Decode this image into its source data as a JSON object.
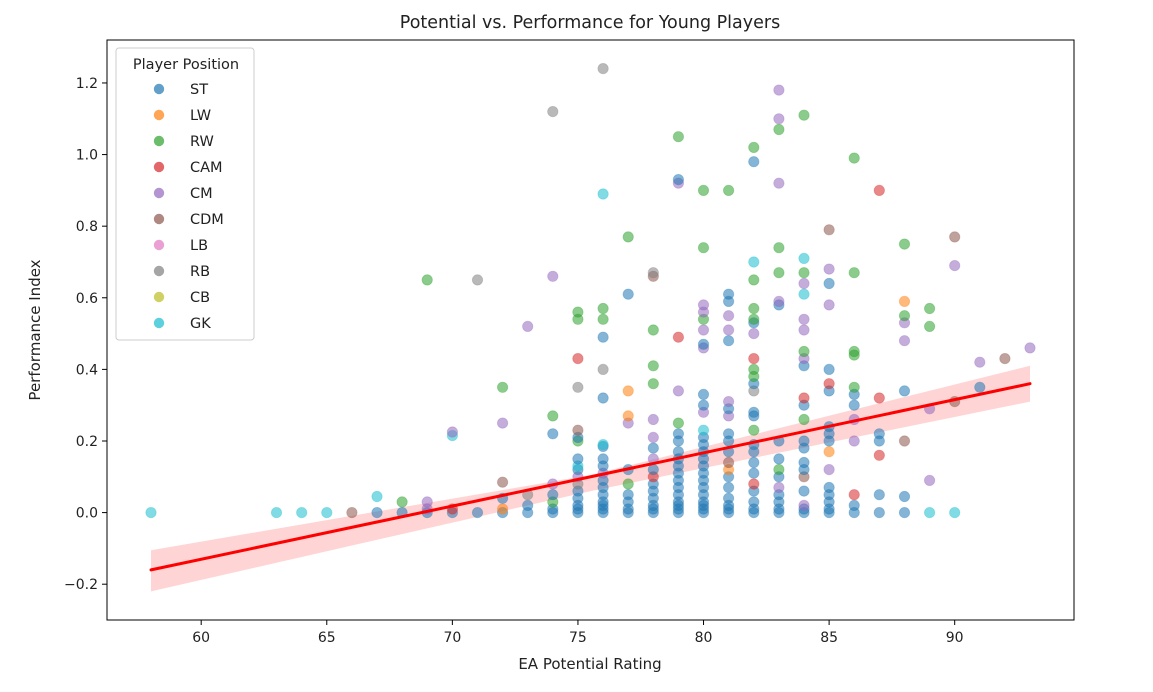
{
  "chart_data": {
    "type": "scatter",
    "title": "Potential vs. Performance for Young Players",
    "xlabel": "EA Potential Rating",
    "ylabel": "Performance Index",
    "xlim": [
      56.25,
      94.75
    ],
    "ylim": [
      -0.3,
      1.32
    ],
    "xticks": [
      60,
      65,
      70,
      75,
      80,
      85,
      90
    ],
    "xtick_labels": [
      "60",
      "65",
      "70",
      "75",
      "80",
      "85",
      "90"
    ],
    "yticks": [
      -0.2,
      0.0,
      0.2,
      0.4,
      0.6,
      0.8,
      1.0,
      1.2
    ],
    "ytick_labels": [
      "−0.2",
      "0.0",
      "0.2",
      "0.4",
      "0.6",
      "0.8",
      "1.0",
      "1.2"
    ],
    "grid": false,
    "legend": {
      "title": "Player Position",
      "position": "top-left",
      "entries": [
        {
          "label": "ST",
          "color": "#1f77b4"
        },
        {
          "label": "LW",
          "color": "#ff7f0e"
        },
        {
          "label": "RW",
          "color": "#2ca02c"
        },
        {
          "label": "CAM",
          "color": "#d62728"
        },
        {
          "label": "CM",
          "color": "#9467bd"
        },
        {
          "label": "CDM",
          "color": "#8c564b"
        },
        {
          "label": "LB",
          "color": "#e377c2"
        },
        {
          "label": "RB",
          "color": "#7f7f7f"
        },
        {
          "label": "CB",
          "color": "#bcbd22"
        },
        {
          "label": "GK",
          "color": "#17becf"
        }
      ]
    },
    "regression": {
      "color": "#ff0000",
      "band_color": "#ffcccc",
      "line": [
        [
          58,
          -0.16
        ],
        [
          93,
          0.36
        ]
      ],
      "band_upper": [
        [
          58,
          -0.105
        ],
        [
          75.5,
          0.105
        ],
        [
          93,
          0.41
        ]
      ],
      "band_lower": [
        [
          58,
          -0.22
        ],
        [
          75.5,
          0.06
        ],
        [
          93,
          0.31
        ]
      ]
    },
    "points": [
      [
        58,
        0.0,
        9
      ],
      [
        63,
        0.0,
        9
      ],
      [
        64,
        0.0,
        9
      ],
      [
        65,
        0.0,
        9
      ],
      [
        66,
        0.0,
        5
      ],
      [
        67,
        0.0,
        0
      ],
      [
        67,
        0.045,
        9
      ],
      [
        68,
        0.0,
        0
      ],
      [
        68,
        0.03,
        2
      ],
      [
        69,
        0.0,
        0
      ],
      [
        69,
        0.01,
        4
      ],
      [
        69,
        0.03,
        4
      ],
      [
        69,
        0.65,
        2
      ],
      [
        70,
        0.0,
        0
      ],
      [
        70,
        0.01,
        3
      ],
      [
        70,
        0.215,
        9
      ],
      [
        70,
        0.225,
        4
      ],
      [
        71,
        0.0,
        0
      ],
      [
        71,
        0.65,
        7
      ],
      [
        72,
        0.0,
        0
      ],
      [
        72,
        0.01,
        1
      ],
      [
        72,
        0.04,
        0
      ],
      [
        72,
        0.085,
        5
      ],
      [
        72,
        0.25,
        4
      ],
      [
        72,
        0.35,
        2
      ],
      [
        73,
        0.0,
        0
      ],
      [
        73,
        0.02,
        0
      ],
      [
        73,
        0.05,
        7
      ],
      [
        73,
        0.52,
        4
      ],
      [
        74,
        0.0,
        0
      ],
      [
        74,
        0.01,
        0
      ],
      [
        74,
        0.03,
        2
      ],
      [
        74,
        0.05,
        0
      ],
      [
        74,
        0.08,
        4
      ],
      [
        74,
        0.22,
        0
      ],
      [
        74,
        0.27,
        2
      ],
      [
        74,
        0.66,
        4
      ],
      [
        74,
        1.12,
        7
      ],
      [
        75,
        0.0,
        0
      ],
      [
        75,
        0.01,
        0
      ],
      [
        75,
        0.02,
        0
      ],
      [
        75,
        0.04,
        0
      ],
      [
        75,
        0.06,
        0
      ],
      [
        75,
        0.08,
        7
      ],
      [
        75,
        0.1,
        4
      ],
      [
        75,
        0.12,
        0
      ],
      [
        75,
        0.13,
        9
      ],
      [
        75,
        0.15,
        0
      ],
      [
        75,
        0.2,
        2
      ],
      [
        75,
        0.21,
        0
      ],
      [
        75,
        0.23,
        5
      ],
      [
        75,
        0.35,
        7
      ],
      [
        75,
        0.43,
        3
      ],
      [
        75,
        0.54,
        2
      ],
      [
        75,
        0.56,
        2
      ],
      [
        76,
        0.0,
        0
      ],
      [
        76,
        0.01,
        0
      ],
      [
        76,
        0.02,
        0
      ],
      [
        76,
        0.03,
        0
      ],
      [
        76,
        0.05,
        0
      ],
      [
        76,
        0.07,
        0
      ],
      [
        76,
        0.09,
        0
      ],
      [
        76,
        0.11,
        4
      ],
      [
        76,
        0.13,
        0
      ],
      [
        76,
        0.15,
        0
      ],
      [
        76,
        0.185,
        0
      ],
      [
        76,
        0.19,
        9
      ],
      [
        76,
        0.32,
        0
      ],
      [
        76,
        0.4,
        7
      ],
      [
        76,
        0.49,
        0
      ],
      [
        76,
        0.54,
        2
      ],
      [
        76,
        0.57,
        2
      ],
      [
        76,
        0.89,
        9
      ],
      [
        76,
        1.24,
        7
      ],
      [
        77,
        0.0,
        0
      ],
      [
        77,
        0.01,
        0
      ],
      [
        77,
        0.03,
        0
      ],
      [
        77,
        0.05,
        0
      ],
      [
        77,
        0.08,
        2
      ],
      [
        77,
        0.12,
        0
      ],
      [
        77,
        0.25,
        4
      ],
      [
        77,
        0.27,
        1
      ],
      [
        77,
        0.34,
        1
      ],
      [
        77,
        0.61,
        0
      ],
      [
        77,
        0.77,
        2
      ],
      [
        78,
        0.0,
        0
      ],
      [
        78,
        0.01,
        0
      ],
      [
        78,
        0.02,
        0
      ],
      [
        78,
        0.04,
        0
      ],
      [
        78,
        0.06,
        0
      ],
      [
        78,
        0.08,
        0
      ],
      [
        78,
        0.1,
        3
      ],
      [
        78,
        0.12,
        0
      ],
      [
        78,
        0.15,
        4
      ],
      [
        78,
        0.18,
        0
      ],
      [
        78,
        0.21,
        4
      ],
      [
        78,
        0.26,
        4
      ],
      [
        78,
        0.36,
        2
      ],
      [
        78,
        0.41,
        2
      ],
      [
        78,
        0.51,
        2
      ],
      [
        78,
        0.66,
        5
      ],
      [
        78,
        0.67,
        7
      ],
      [
        79,
        0.0,
        0
      ],
      [
        79,
        0.01,
        0
      ],
      [
        79,
        0.02,
        0
      ],
      [
        79,
        0.03,
        0
      ],
      [
        79,
        0.05,
        0
      ],
      [
        79,
        0.07,
        0
      ],
      [
        79,
        0.09,
        0
      ],
      [
        79,
        0.11,
        0
      ],
      [
        79,
        0.13,
        0
      ],
      [
        79,
        0.15,
        0
      ],
      [
        79,
        0.17,
        0
      ],
      [
        79,
        0.2,
        0
      ],
      [
        79,
        0.22,
        0
      ],
      [
        79,
        0.25,
        2
      ],
      [
        79,
        0.34,
        4
      ],
      [
        79,
        0.49,
        3
      ],
      [
        79,
        0.92,
        4
      ],
      [
        79,
        0.93,
        0
      ],
      [
        79,
        1.05,
        2
      ],
      [
        80,
        0.0,
        0
      ],
      [
        80,
        0.01,
        0
      ],
      [
        80,
        0.02,
        0
      ],
      [
        80,
        0.03,
        0
      ],
      [
        80,
        0.05,
        0
      ],
      [
        80,
        0.07,
        0
      ],
      [
        80,
        0.09,
        0
      ],
      [
        80,
        0.11,
        0
      ],
      [
        80,
        0.13,
        0
      ],
      [
        80,
        0.15,
        0
      ],
      [
        80,
        0.17,
        0
      ],
      [
        80,
        0.19,
        0
      ],
      [
        80,
        0.21,
        0
      ],
      [
        80,
        0.23,
        9
      ],
      [
        80,
        0.28,
        4
      ],
      [
        80,
        0.3,
        0
      ],
      [
        80,
        0.33,
        0
      ],
      [
        80,
        0.46,
        4
      ],
      [
        80,
        0.47,
        0
      ],
      [
        80,
        0.51,
        4
      ],
      [
        80,
        0.54,
        2
      ],
      [
        80,
        0.56,
        4
      ],
      [
        80,
        0.58,
        4
      ],
      [
        80,
        0.74,
        2
      ],
      [
        80,
        0.9,
        2
      ],
      [
        81,
        0.0,
        0
      ],
      [
        81,
        0.01,
        0
      ],
      [
        81,
        0.02,
        0
      ],
      [
        81,
        0.04,
        0
      ],
      [
        81,
        0.07,
        0
      ],
      [
        81,
        0.1,
        0
      ],
      [
        81,
        0.12,
        1
      ],
      [
        81,
        0.14,
        5
      ],
      [
        81,
        0.17,
        0
      ],
      [
        81,
        0.2,
        0
      ],
      [
        81,
        0.22,
        0
      ],
      [
        81,
        0.27,
        4
      ],
      [
        81,
        0.29,
        0
      ],
      [
        81,
        0.31,
        4
      ],
      [
        81,
        0.48,
        0
      ],
      [
        81,
        0.51,
        4
      ],
      [
        81,
        0.55,
        4
      ],
      [
        81,
        0.59,
        0
      ],
      [
        81,
        0.61,
        0
      ],
      [
        81,
        0.9,
        2
      ],
      [
        82,
        0.0,
        0
      ],
      [
        82,
        0.01,
        0
      ],
      [
        82,
        0.03,
        0
      ],
      [
        82,
        0.06,
        0
      ],
      [
        82,
        0.08,
        3
      ],
      [
        82,
        0.11,
        0
      ],
      [
        82,
        0.14,
        0
      ],
      [
        82,
        0.17,
        0
      ],
      [
        82,
        0.19,
        0
      ],
      [
        82,
        0.23,
        2
      ],
      [
        82,
        0.27,
        0
      ],
      [
        82,
        0.28,
        0
      ],
      [
        82,
        0.34,
        7
      ],
      [
        82,
        0.36,
        0
      ],
      [
        82,
        0.38,
        2
      ],
      [
        82,
        0.4,
        2
      ],
      [
        82,
        0.43,
        3
      ],
      [
        82,
        0.5,
        4
      ],
      [
        82,
        0.53,
        0
      ],
      [
        82,
        0.54,
        2
      ],
      [
        82,
        0.57,
        2
      ],
      [
        82,
        0.65,
        2
      ],
      [
        82,
        0.7,
        9
      ],
      [
        82,
        0.98,
        0
      ],
      [
        82,
        1.02,
        2
      ],
      [
        83,
        0.0,
        0
      ],
      [
        83,
        0.01,
        0
      ],
      [
        83,
        0.03,
        0
      ],
      [
        83,
        0.05,
        0
      ],
      [
        83,
        0.07,
        4
      ],
      [
        83,
        0.1,
        0
      ],
      [
        83,
        0.12,
        2
      ],
      [
        83,
        0.15,
        0
      ],
      [
        83,
        0.2,
        0
      ],
      [
        83,
        0.58,
        0
      ],
      [
        83,
        0.59,
        4
      ],
      [
        83,
        0.67,
        2
      ],
      [
        83,
        0.74,
        2
      ],
      [
        83,
        0.92,
        4
      ],
      [
        83,
        1.07,
        2
      ],
      [
        83,
        1.1,
        4
      ],
      [
        83,
        1.18,
        4
      ],
      [
        84,
        0.0,
        0
      ],
      [
        84,
        0.01,
        0
      ],
      [
        84,
        0.02,
        4
      ],
      [
        84,
        0.06,
        0
      ],
      [
        84,
        0.1,
        5
      ],
      [
        84,
        0.12,
        0
      ],
      [
        84,
        0.14,
        0
      ],
      [
        84,
        0.18,
        0
      ],
      [
        84,
        0.2,
        0
      ],
      [
        84,
        0.26,
        2
      ],
      [
        84,
        0.3,
        0
      ],
      [
        84,
        0.32,
        3
      ],
      [
        84,
        0.41,
        0
      ],
      [
        84,
        0.43,
        4
      ],
      [
        84,
        0.45,
        2
      ],
      [
        84,
        0.51,
        4
      ],
      [
        84,
        0.54,
        4
      ],
      [
        84,
        0.61,
        9
      ],
      [
        84,
        0.64,
        4
      ],
      [
        84,
        0.67,
        2
      ],
      [
        84,
        0.71,
        9
      ],
      [
        84,
        1.11,
        2
      ],
      [
        85,
        0.0,
        0
      ],
      [
        85,
        0.01,
        0
      ],
      [
        85,
        0.03,
        0
      ],
      [
        85,
        0.05,
        0
      ],
      [
        85,
        0.07,
        0
      ],
      [
        85,
        0.12,
        4
      ],
      [
        85,
        0.17,
        1
      ],
      [
        85,
        0.2,
        0
      ],
      [
        85,
        0.22,
        0
      ],
      [
        85,
        0.24,
        0
      ],
      [
        85,
        0.34,
        0
      ],
      [
        85,
        0.36,
        3
      ],
      [
        85,
        0.4,
        0
      ],
      [
        85,
        0.58,
        4
      ],
      [
        85,
        0.64,
        0
      ],
      [
        85,
        0.68,
        4
      ],
      [
        85,
        0.79,
        5
      ],
      [
        86,
        0.0,
        0
      ],
      [
        86,
        0.02,
        0
      ],
      [
        86,
        0.05,
        3
      ],
      [
        86,
        0.2,
        4
      ],
      [
        86,
        0.26,
        4
      ],
      [
        86,
        0.3,
        0
      ],
      [
        86,
        0.33,
        0
      ],
      [
        86,
        0.35,
        2
      ],
      [
        86,
        0.44,
        2
      ],
      [
        86,
        0.45,
        2
      ],
      [
        86,
        0.67,
        2
      ],
      [
        86,
        0.99,
        2
      ],
      [
        87,
        0.0,
        0
      ],
      [
        87,
        0.05,
        0
      ],
      [
        87,
        0.16,
        3
      ],
      [
        87,
        0.2,
        0
      ],
      [
        87,
        0.22,
        0
      ],
      [
        87,
        0.32,
        3
      ],
      [
        87,
        0.9,
        3
      ],
      [
        88,
        0.0,
        0
      ],
      [
        88,
        0.045,
        0
      ],
      [
        88,
        0.2,
        5
      ],
      [
        88,
        0.34,
        0
      ],
      [
        88,
        0.48,
        4
      ],
      [
        88,
        0.53,
        4
      ],
      [
        88,
        0.55,
        2
      ],
      [
        88,
        0.59,
        1
      ],
      [
        88,
        0.75,
        2
      ],
      [
        89,
        0.0,
        9
      ],
      [
        89,
        0.09,
        4
      ],
      [
        89,
        0.29,
        4
      ],
      [
        89,
        0.52,
        2
      ],
      [
        89,
        0.57,
        2
      ],
      [
        90,
        0.0,
        9
      ],
      [
        90,
        0.31,
        5
      ],
      [
        90,
        0.69,
        4
      ],
      [
        90,
        0.77,
        5
      ],
      [
        91,
        0.35,
        0
      ],
      [
        91,
        0.42,
        4
      ],
      [
        92,
        0.43,
        5
      ],
      [
        93,
        0.46,
        4
      ]
    ]
  }
}
